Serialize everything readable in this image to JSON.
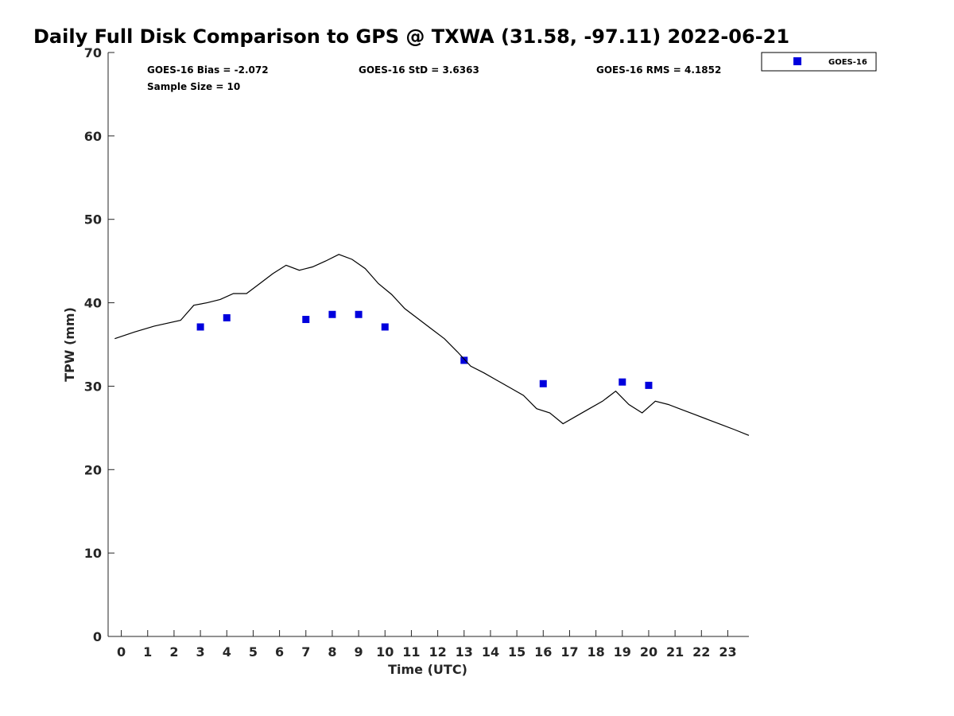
{
  "chart_data": {
    "type": "scatter",
    "title": "Daily Full Disk Comparison to GPS @ TXWA (31.58, -97.11) 2022-06-21",
    "xlabel": "Time (UTC)",
    "ylabel": "TPW (mm)",
    "xlim": [
      -0.5,
      23.8
    ],
    "ylim": [
      0,
      70
    ],
    "xticks": [
      0,
      1,
      2,
      3,
      4,
      5,
      6,
      7,
      8,
      9,
      10,
      11,
      12,
      13,
      14,
      15,
      16,
      17,
      18,
      19,
      20,
      21,
      22,
      23
    ],
    "yticks": [
      0,
      10,
      20,
      30,
      40,
      50,
      60,
      70
    ],
    "grid": false,
    "legend_position": "top-right",
    "stats": {
      "bias": "GOES-16 Bias = -2.072",
      "std": "GOES-16 StD = 3.6363",
      "rms": "GOES-16 RMS = 4.1852",
      "sample_size": "Sample Size = 10"
    },
    "series": [
      {
        "name": "GOES-16",
        "kind": "scatter",
        "marker": "square",
        "color": "#0000dd",
        "x": [
          3,
          4,
          7,
          8,
          9,
          10,
          13,
          16,
          19,
          20
        ],
        "y": [
          37.1,
          38.2,
          38.0,
          38.6,
          38.6,
          37.1,
          33.1,
          30.3,
          30.5,
          30.1
        ]
      },
      {
        "kind": "line",
        "color": "#000000",
        "x": [
          -0.25,
          0.5,
          1.25,
          2.25,
          2.75,
          3.25,
          3.75,
          4.25,
          4.75,
          5.25,
          5.75,
          6.25,
          6.75,
          7.25,
          7.75,
          8.25,
          8.75,
          9.25,
          9.75,
          10.25,
          10.75,
          11.25,
          11.75,
          12.25,
          12.75,
          13.25,
          13.75,
          14.25,
          14.75,
          15.25,
          15.75,
          16.25,
          16.75,
          17.25,
          17.75,
          18.25,
          18.75,
          19.25,
          19.75,
          20.25,
          20.75,
          21.25,
          21.75,
          22.25,
          22.75,
          23.25,
          23.8
        ],
        "y": [
          35.7,
          36.5,
          37.2,
          37.9,
          39.7,
          40.0,
          40.4,
          41.1,
          41.1,
          42.3,
          43.5,
          44.5,
          43.9,
          44.3,
          45.0,
          45.8,
          45.2,
          44.1,
          42.3,
          41.0,
          39.3,
          38.1,
          36.9,
          35.7,
          34.1,
          32.4,
          31.6,
          30.7,
          29.8,
          28.9,
          27.3,
          26.8,
          25.5,
          26.4,
          27.3,
          28.2,
          29.4,
          27.8,
          26.8,
          28.2,
          27.8,
          27.2,
          26.6,
          26.0,
          25.4,
          24.8,
          24.1
        ]
      }
    ]
  }
}
